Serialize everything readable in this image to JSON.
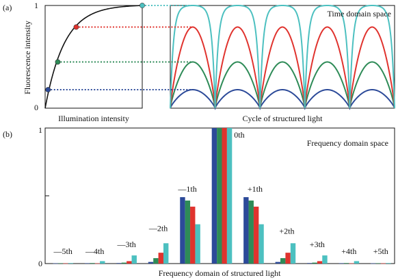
{
  "colors": {
    "blue": "#2c4a99",
    "green": "#2e8b57",
    "red": "#e0332e",
    "cyan": "#4cc0c0",
    "black": "#111111"
  },
  "chart_data": [
    {
      "id": "a-left",
      "type": "line",
      "panel_label": "(a)",
      "xlabel": "Illumination intensity",
      "ylabel": "Fluorescence intensity",
      "y_ticks": [
        "0",
        "1"
      ],
      "ylim": [
        0,
        1
      ],
      "xlim": [
        0,
        1
      ],
      "curve": "saturation: y = 1 - exp(-k x)",
      "markers": [
        {
          "color": "blue",
          "x": 0.03,
          "y": 0.18
        },
        {
          "color": "green",
          "x": 0.13,
          "y": 0.45
        },
        {
          "color": "red",
          "x": 0.32,
          "y": 0.79
        },
        {
          "color": "cyan",
          "x": 1.0,
          "y": 1.0
        }
      ]
    },
    {
      "id": "a-right",
      "type": "line",
      "title": "Time domain space",
      "xlabel": "Cycle of structured light",
      "cycles": 5,
      "series": [
        {
          "color": "blue",
          "amplitude": 0.18
        },
        {
          "color": "green",
          "amplitude": 0.45
        },
        {
          "color": "red",
          "amplitude": 0.79
        },
        {
          "color": "cyan",
          "amplitude": 1.0
        }
      ]
    },
    {
      "id": "b",
      "type": "bar",
      "panel_label": "(b)",
      "title": "Frequency domain space",
      "xlabel": "Frequency domain of structured light",
      "y_ticks": [
        "0",
        "1"
      ],
      "ylim": [
        0,
        1
      ],
      "categories": [
        "—5th",
        "—4th",
        "—3th",
        "—2th",
        "—1th",
        "0th",
        "+1th",
        "+2th",
        "+3th",
        "+4th",
        "+5th"
      ],
      "series": [
        {
          "color": "blue",
          "values": [
            0.002,
            0.003,
            0.004,
            0.012,
            0.49,
            1.0,
            0.49,
            0.012,
            0.004,
            0.003,
            0.002
          ]
        },
        {
          "color": "green",
          "values": [
            0.003,
            0.004,
            0.007,
            0.04,
            0.465,
            1.0,
            0.465,
            0.04,
            0.007,
            0.004,
            0.003
          ]
        },
        {
          "color": "red",
          "values": [
            0.002,
            0.002,
            0.018,
            0.08,
            0.42,
            1.0,
            0.42,
            0.08,
            0.018,
            0.002,
            0.002
          ]
        },
        {
          "color": "cyan",
          "values": [
            0.004,
            0.018,
            0.06,
            0.15,
            0.29,
            1.0,
            0.29,
            0.15,
            0.06,
            0.018,
            0.004
          ]
        }
      ]
    }
  ]
}
